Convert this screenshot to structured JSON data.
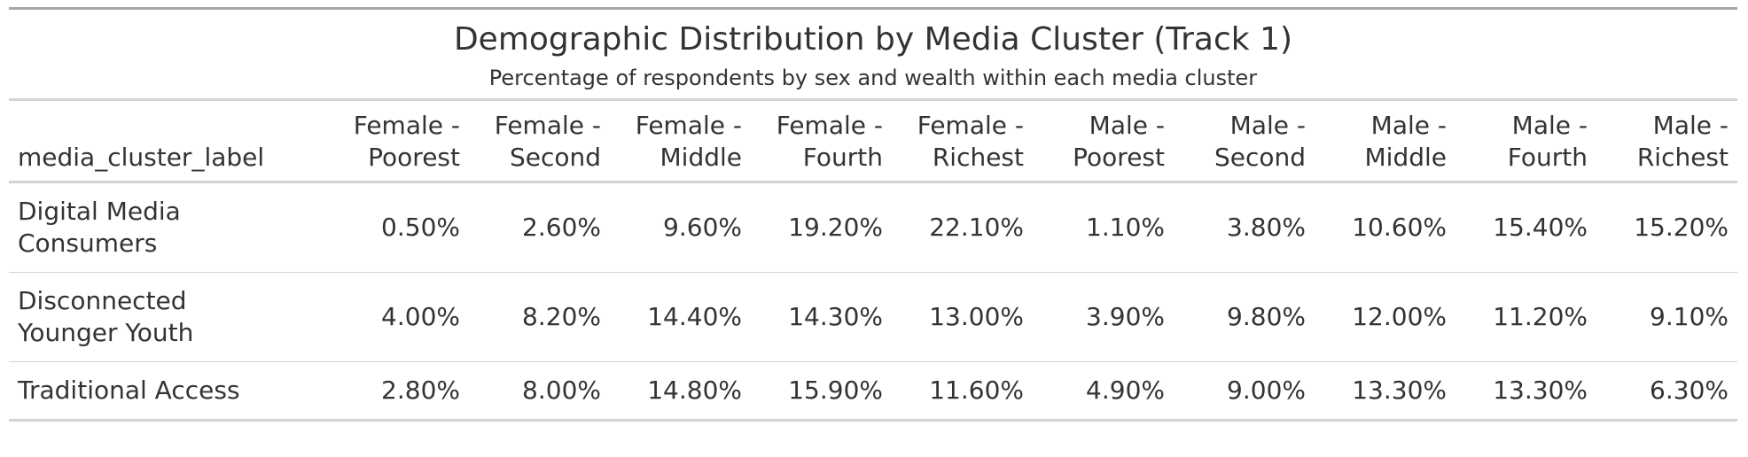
{
  "table": {
    "title": "Demographic Distribution by Media Cluster (Track 1)",
    "subtitle": "Percentage of respondents by sex and wealth within each media cluster",
    "stub_header": "media_cluster_label",
    "columns": [
      {
        "line1": "Female -",
        "line2": "Poorest"
      },
      {
        "line1": "Female -",
        "line2": "Second"
      },
      {
        "line1": "Female -",
        "line2": "Middle"
      },
      {
        "line1": "Female -",
        "line2": "Fourth"
      },
      {
        "line1": "Female -",
        "line2": "Richest"
      },
      {
        "line1": "Male -",
        "line2": "Poorest"
      },
      {
        "line1": "Male -",
        "line2": "Second"
      },
      {
        "line1": "Male -",
        "line2": "Middle"
      },
      {
        "line1": "Male -",
        "line2": "Fourth"
      },
      {
        "line1": "Male -",
        "line2": "Richest"
      }
    ],
    "rows": [
      {
        "label_line1": "Digital Media",
        "label_line2": "Consumers",
        "values": [
          "0.50%",
          "2.60%",
          "9.60%",
          "19.20%",
          "22.10%",
          "1.10%",
          "3.80%",
          "10.60%",
          "15.40%",
          "15.20%"
        ]
      },
      {
        "label_line1": "Disconnected",
        "label_line2": "Younger Youth",
        "values": [
          "4.00%",
          "8.20%",
          "14.40%",
          "14.30%",
          "13.00%",
          "3.90%",
          "9.80%",
          "12.00%",
          "11.20%",
          "9.10%"
        ]
      },
      {
        "label_line1": "Traditional Access",
        "label_line2": "",
        "values": [
          "2.80%",
          "8.00%",
          "14.80%",
          "15.90%",
          "11.60%",
          "4.90%",
          "9.00%",
          "13.30%",
          "13.30%",
          "6.30%"
        ]
      }
    ]
  }
}
